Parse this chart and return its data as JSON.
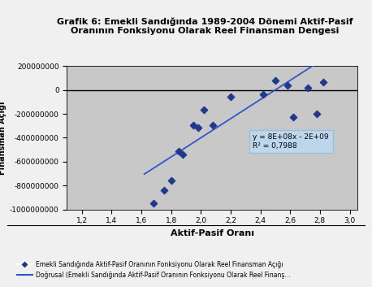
{
  "title": "Grafik 6: Emekli Sandığında 1989-2004 Dönemi Aktif-Pasif\nOranının Fonksiyonu Olarak Reel Finansman Dengesi",
  "xlabel": "Aktif-Pasif Oranı",
  "scatter_x": [
    1.68,
    1.75,
    1.8,
    1.85,
    1.88,
    1.95,
    1.98,
    2.02,
    2.08,
    2.2,
    2.42,
    2.5,
    2.58,
    2.62,
    2.72,
    2.78,
    2.82
  ],
  "scatter_y": [
    -950000000,
    -840000000,
    -760000000,
    -510000000,
    -540000000,
    -295000000,
    -315000000,
    -165000000,
    -295000000,
    -60000000,
    -35000000,
    80000000,
    40000000,
    -230000000,
    20000000,
    -200000000,
    65000000
  ],
  "slope": 800000000,
  "intercept": -2000000000,
  "line_x_start": 1.62,
  "line_x_end": 3.0,
  "equation_text": "y = 8E+08x - 2E+09",
  "r2_text": "R² = 0,7988",
  "scatter_color": "#1F3A8C",
  "line_color": "#3355CC",
  "fig_bg_color": "#F0F0F0",
  "plot_bg_color": "#C8C8C8",
  "xlim": [
    1.1,
    3.05
  ],
  "ylim": [
    -1000000000,
    200000000
  ],
  "xticks": [
    1.2,
    1.4,
    1.6,
    1.8,
    2.0,
    2.2,
    2.4,
    2.6,
    2.8,
    3.0
  ],
  "yticks": [
    -1000000000,
    -800000000,
    -600000000,
    -400000000,
    -200000000,
    0,
    200000000
  ],
  "ytick_labels": [
    "-1000000000",
    "-800000000",
    "-600000000",
    "-400000000",
    "-200000000",
    "0",
    "200000000"
  ],
  "legend_scatter": "Emekli Sandığında Aktif-Pasif Oranının Fonksiyonu Olarak Reel Finansman Açığı",
  "legend_line": "Doğrusal (Emekli Sandığında Aktif-Pasif Oranının Fonksiyonu Olarak Reel Finanş..."
}
